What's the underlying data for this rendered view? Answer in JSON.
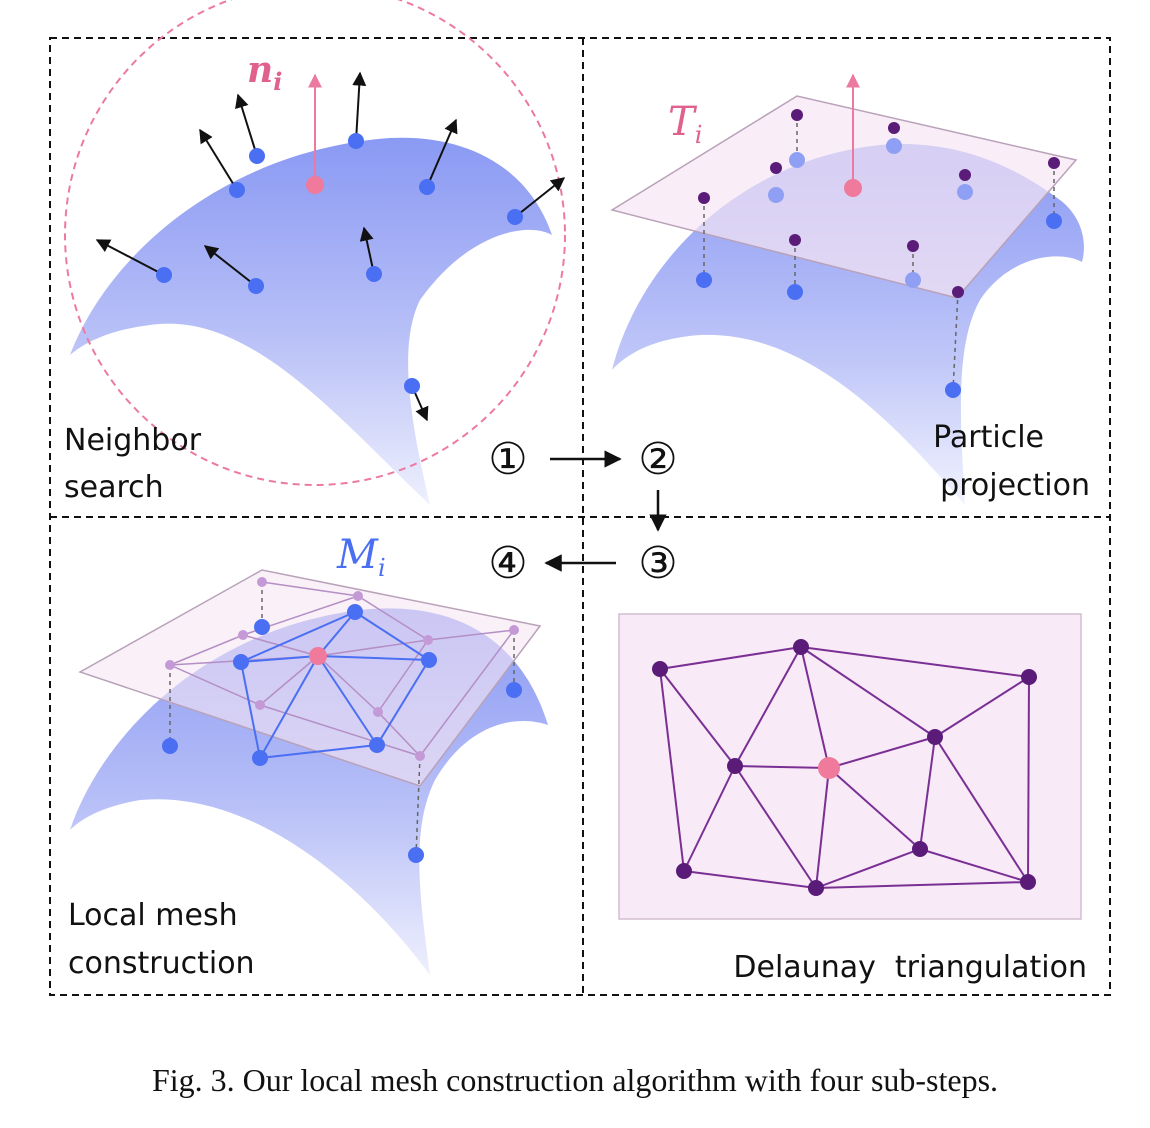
{
  "panels": {
    "neighbor_search": {
      "label_line1": "Neighbor",
      "label_line2": "search",
      "symbol": "n",
      "symbol_sub": "i"
    },
    "particle_projection": {
      "label_line1": "Particle",
      "label_line2": "projection",
      "symbol": "T",
      "symbol_sub": "i"
    },
    "local_mesh": {
      "label_line1": "Local mesh",
      "label_line2": "construction",
      "symbol": "M",
      "symbol_sub": "i"
    },
    "delaunay": {
      "label": "Delaunay  triangulation"
    }
  },
  "steps": {
    "s1": "①",
    "s2": "②",
    "s3": "③",
    "s4": "④"
  },
  "caption": "Fig. 3.  Our local mesh construction algorithm with four sub-steps.",
  "colors": {
    "particle_blue": "#4a6ff2",
    "normal_pink": "#ec7aa0",
    "center_pink": "#f07a9b",
    "projected_purple": "#5a1c78",
    "delaunay_purple": "#7a2f95",
    "surface_blue": "#8f9ef5",
    "plane_pink": "#f6e8f4"
  }
}
